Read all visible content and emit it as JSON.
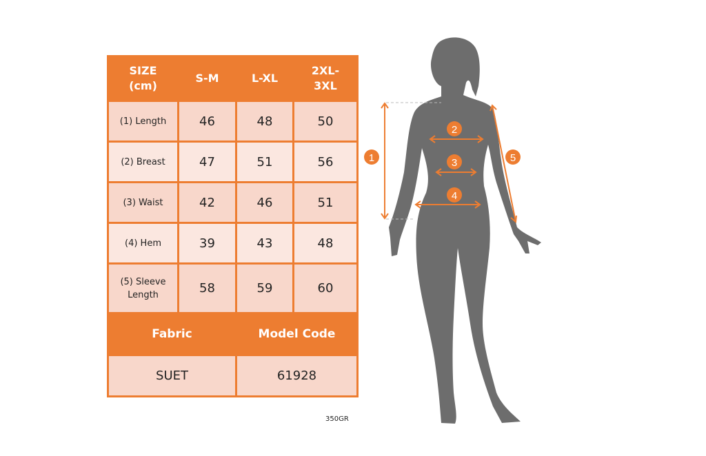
{
  "table": {
    "header": [
      "SIZE\n(cm)",
      "S-M",
      "L-XL",
      "2XL-\n3XL"
    ],
    "rows": [
      {
        "label": "(1) Length",
        "values": [
          "46",
          "48",
          "50"
        ]
      },
      {
        "label": "(2) Breast",
        "values": [
          "47",
          "51",
          "56"
        ]
      },
      {
        "label": "(3) Waist",
        "values": [
          "42",
          "46",
          "51"
        ]
      },
      {
        "label": "(4) Hem",
        "values": [
          "39",
          "43",
          "48"
        ]
      },
      {
        "label": "(5) Sleeve\nLength",
        "values": [
          "58",
          "59",
          "60"
        ]
      }
    ],
    "fabric_label": "Fabric",
    "model_code_label": "Model Code",
    "fabric_value": "SUET",
    "model_code_value": "61928"
  },
  "note": "350GR",
  "diagram": {
    "markers": [
      "1",
      "2",
      "3",
      "4",
      "5"
    ]
  },
  "colors": {
    "accent": "#ed7d31",
    "row_dark": "#f8d7cb",
    "row_light": "#fbe7e0",
    "silhouette": "#6d6d6d"
  }
}
